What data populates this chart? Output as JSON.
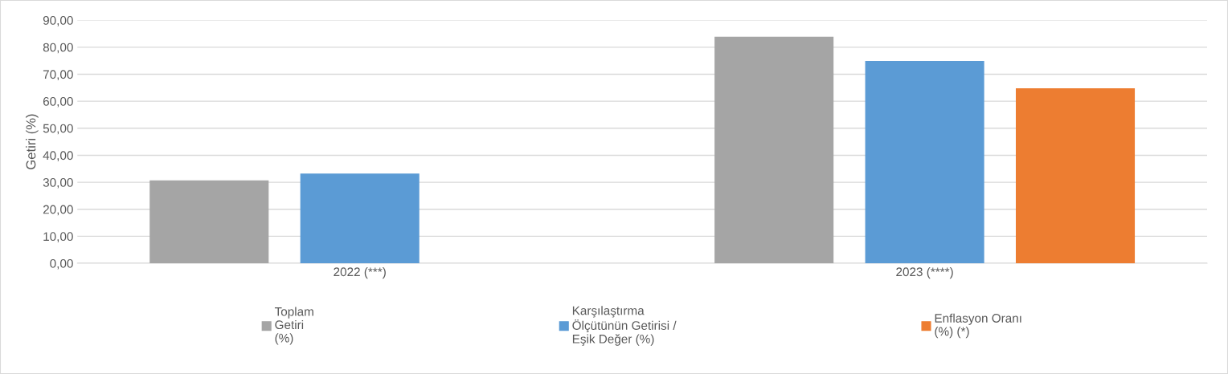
{
  "chart_data": {
    "type": "bar",
    "ylabel": "Getiri (%)",
    "categories": [
      "2022 (***)",
      "2023 (****)"
    ],
    "series": [
      {
        "name": "Toplam\nGetiri\n(%)",
        "color": "#a5a5a5",
        "values": [
          30.7,
          83.9
        ]
      },
      {
        "name": "Karşılaştırma\nÖlçütünün Getirisi /\nEşik Değer (%)",
        "color": "#5b9bd5",
        "values": [
          33.2,
          74.9
        ]
      },
      {
        "name": "Enflasyon Oranı\n(%) (*)",
        "color": "#ed7d31",
        "values": [
          null,
          64.8
        ]
      }
    ],
    "ylim": [
      0,
      90
    ],
    "yticks": [
      {
        "value": 0,
        "label": "0,00"
      },
      {
        "value": 10,
        "label": "10,00"
      },
      {
        "value": 20,
        "label": "20,00"
      },
      {
        "value": 30,
        "label": "30,00"
      },
      {
        "value": 40,
        "label": "40,00"
      },
      {
        "value": 50,
        "label": "50,00"
      },
      {
        "value": 60,
        "label": "60,00"
      },
      {
        "value": 70,
        "label": "70,00"
      },
      {
        "value": 80,
        "label": "80,00"
      },
      {
        "value": 90,
        "label": "90,00"
      }
    ],
    "grid": "y",
    "legend": "bottom"
  }
}
